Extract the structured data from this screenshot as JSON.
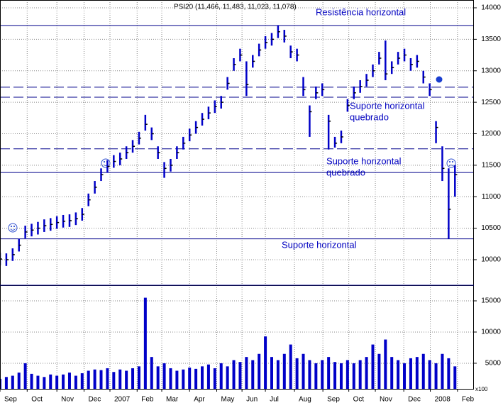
{
  "chart_data": {
    "type": "ohlc",
    "title": "PSI20 (11,466, 11,483, 11,023, 11,078)",
    "color": "#0000c8",
    "grid": true,
    "x": [
      0,
      1,
      2,
      3,
      4,
      5,
      6,
      7,
      8,
      9,
      10,
      11,
      12,
      13,
      14,
      15,
      16,
      17,
      18,
      19,
      20,
      21,
      22,
      23,
      24,
      25,
      26,
      27,
      28,
      29,
      30,
      31,
      32,
      33,
      34,
      35,
      36,
      37,
      38,
      39,
      40,
      41,
      42,
      43,
      44,
      45,
      46,
      47,
      48,
      49,
      50,
      51,
      52,
      53,
      54,
      55,
      56,
      57,
      58,
      59,
      60,
      61,
      62,
      63,
      64,
      65,
      66,
      67,
      68,
      69,
      70,
      71,
      72
    ],
    "xlim": [
      0,
      75
    ],
    "xticks": [
      {
        "value": 0,
        "label": "Sep"
      },
      {
        "value": 4.3,
        "label": "Oct"
      },
      {
        "value": 9.0,
        "label": "Nov"
      },
      {
        "value": 13.3,
        "label": "Dec"
      },
      {
        "value": 17.4,
        "label": "2007"
      },
      {
        "value": 21.7,
        "label": "Feb"
      },
      {
        "value": 25.6,
        "label": "Mar"
      },
      {
        "value": 30.0,
        "label": "Apr"
      },
      {
        "value": 34.3,
        "label": "May"
      },
      {
        "value": 38.3,
        "label": "Jun"
      },
      {
        "value": 42.0,
        "label": "Jul"
      },
      {
        "value": 46.6,
        "label": "Aug"
      },
      {
        "value": 51.1,
        "label": "Sep"
      },
      {
        "value": 55.2,
        "label": "Oct"
      },
      {
        "value": 59.4,
        "label": "Nov"
      },
      {
        "value": 63.9,
        "label": "Dec"
      },
      {
        "value": 68.1,
        "label": "2008"
      },
      {
        "value": 72.4,
        "label": "Feb"
      }
    ],
    "ylim": [
      9594,
      14124
    ],
    "yticks": [
      10000,
      10500,
      11000,
      11500,
      12000,
      12500,
      13000,
      13500,
      14000
    ],
    "close": [
      10010,
      10000,
      10080,
      10230,
      10440,
      10470,
      10500,
      10540,
      10560,
      10590,
      10610,
      10620,
      10650,
      10720,
      10950,
      11150,
      11350,
      11480,
      11560,
      11600,
      11700,
      11800,
      11930,
      12150,
      12000,
      11700,
      11450,
      11500,
      11700,
      11850,
      11980,
      12100,
      12230,
      12330,
      12430,
      12500,
      12800,
      13100,
      13250,
      12780,
      13150,
      13330,
      13450,
      13500,
      13620,
      13550,
      13300,
      13250,
      12700,
      12350,
      12650,
      12700,
      12200,
      11850,
      11950,
      12450,
      12650,
      12750,
      12850,
      13000,
      13200,
      12950,
      13050,
      13200,
      13250,
      13100,
      13150,
      12900,
      12700,
      12100,
      11450,
      10800,
      11350
    ],
    "high": [
      10110,
      10100,
      10180,
      10330,
      10540,
      10570,
      10600,
      10640,
      10660,
      10690,
      10710,
      10720,
      10750,
      10820,
      11050,
      11250,
      11450,
      11580,
      11660,
      11700,
      11800,
      11900,
      12030,
      12300,
      12100,
      11800,
      11550,
      11600,
      11800,
      11950,
      12080,
      12200,
      12330,
      12430,
      12530,
      12600,
      12900,
      13200,
      13350,
      13150,
      13250,
      13430,
      13550,
      13600,
      13720,
      13650,
      13400,
      13350,
      12900,
      12450,
      12750,
      12800,
      12300,
      11950,
      12050,
      12550,
      12750,
      12850,
      12950,
      13100,
      13300,
      13480,
      13150,
      13300,
      13350,
      13200,
      13250,
      13000,
      12800,
      12200,
      11800,
      11450,
      11500
    ],
    "low": [
      9910,
      9900,
      9980,
      10130,
      10340,
      10370,
      10400,
      10440,
      10460,
      10490,
      10510,
      10520,
      10550,
      10620,
      10850,
      11050,
      11250,
      11380,
      11460,
      11500,
      11600,
      11700,
      11830,
      12050,
      11900,
      11600,
      11300,
      11400,
      11600,
      11750,
      11880,
      12000,
      12130,
      12230,
      12330,
      12400,
      12700,
      13000,
      13150,
      12600,
      13050,
      13230,
      13350,
      13400,
      13520,
      13450,
      13200,
      13150,
      12600,
      11950,
      12550,
      12600,
      11750,
      11780,
      11850,
      12350,
      12550,
      12650,
      12750,
      12900,
      13100,
      12850,
      12950,
      13100,
      13150,
      13000,
      13050,
      12800,
      12600,
      11850,
      11250,
      10330,
      11000
    ],
    "hlines": [
      {
        "value": 13720,
        "style": "solid"
      },
      {
        "value": 12740,
        "style": "dashed"
      },
      {
        "value": 12580,
        "style": "dashed"
      },
      {
        "value": 11760,
        "style": "dashed"
      },
      {
        "value": 11385,
        "style": "solid"
      },
      {
        "value": 10330,
        "style": "solid"
      }
    ],
    "line_color": "#00008b",
    "annotations": [
      [
        "Resistência horizontal"
      ],
      [
        "Suporte horizontal",
        "quebrado"
      ],
      [
        "Suporte horizontal",
        "quebrado"
      ],
      [
        "Suporte horizontal"
      ]
    ],
    "volume": {
      "unit_label": "x100",
      "ylim": [
        900,
        17500
      ],
      "yticks": [
        5000,
        10000,
        15000
      ],
      "values": [
        2500,
        2800,
        3000,
        3500,
        5000,
        3300,
        3000,
        2800,
        3200,
        3000,
        3200,
        3500,
        3000,
        3400,
        3800,
        4000,
        3900,
        4200,
        3600,
        4000,
        3800,
        4200,
        4500,
        15500,
        6000,
        4500,
        5000,
        4200,
        3800,
        4000,
        4300,
        4100,
        4500,
        4800,
        4200,
        5000,
        4500,
        5500,
        5200,
        6000,
        5500,
        6500,
        9300,
        6000,
        5500,
        6500,
        8000,
        5800,
        6500,
        5500,
        5000,
        5500,
        6000,
        5200,
        5000,
        5500,
        5000,
        5500,
        6000,
        8000,
        6500,
        8800,
        6000,
        5500,
        5000,
        5800,
        6000,
        6500,
        5500,
        5000,
        6500,
        5800,
        4500
      ]
    }
  }
}
